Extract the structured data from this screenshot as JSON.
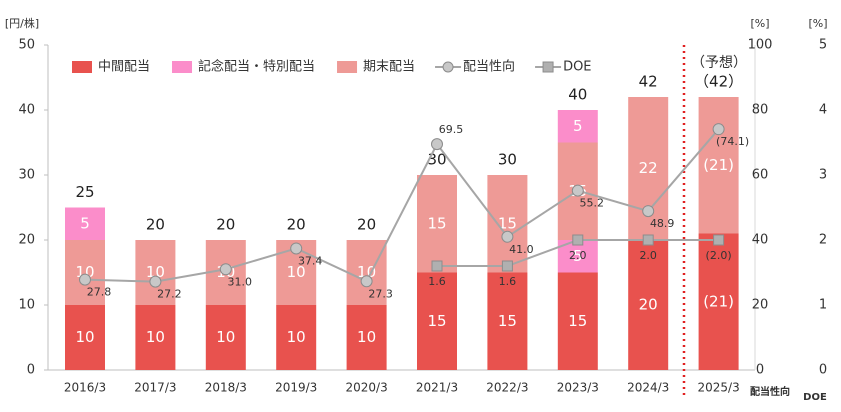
{
  "chart_data": {
    "type": "bar",
    "annotation": "（予想）",
    "y_label": "[円/株]",
    "y2_label": "[%]",
    "y3_label": "[%]",
    "y2_axis_name": "配当性向",
    "y3_axis_name": "DOE",
    "categories": [
      "2016/3",
      "2017/3",
      "2018/3",
      "2019/3",
      "2020/3",
      "2021/3",
      "2022/3",
      "2023/3",
      "2024/3",
      "2025/3"
    ],
    "ylim": [
      0,
      50
    ],
    "yticks": [
      0,
      10,
      20,
      30,
      40,
      50
    ],
    "y2lim": [
      0,
      100
    ],
    "y2ticks": [
      0,
      20,
      40,
      60,
      80,
      100
    ],
    "y3lim": [
      0,
      5
    ],
    "y3ticks": [
      0,
      1,
      2,
      3,
      4,
      5
    ],
    "series": [
      {
        "name": "中間配当",
        "kind": "bar",
        "color": "#e8524e",
        "values": [
          10,
          10,
          10,
          10,
          10,
          15,
          15,
          15,
          20,
          21
        ],
        "value_labels": [
          "10",
          "10",
          "10",
          "10",
          "10",
          "15",
          "15",
          "15",
          "20",
          "(21)"
        ]
      },
      {
        "name": "記念配当・特別配当",
        "kind": "bar",
        "color": "#fb8dca",
        "values": [
          0,
          0,
          0,
          0,
          0,
          0,
          0,
          5,
          0,
          0
        ]
      },
      {
        "name": "期末配当",
        "kind": "bar",
        "color": "#ee9a96",
        "values": [
          10,
          10,
          10,
          10,
          10,
          15,
          15,
          15,
          22,
          21
        ],
        "value_labels": [
          "10",
          "10",
          "10",
          "10",
          "10",
          "15",
          "15",
          "15",
          "22",
          "(21)"
        ]
      },
      {
        "name": "記念配当・特別配当",
        "kind": "bar",
        "color": "#fb8dca",
        "values": [
          5,
          0,
          0,
          0,
          0,
          0,
          0,
          5,
          0,
          0
        ]
      },
      {
        "name": "配当性向",
        "kind": "line",
        "axis": "y2",
        "marker": "circle",
        "color": "#a6a6a6",
        "values": [
          27.8,
          27.2,
          31.0,
          37.4,
          27.3,
          69.5,
          41.0,
          55.2,
          48.9,
          74.1
        ],
        "value_labels": [
          "27.8",
          "27.2",
          "31.0",
          "37.4",
          "27.3",
          "69.5",
          "41.0",
          "55.2",
          "48.9",
          "(74.1)"
        ]
      },
      {
        "name": "DOE",
        "kind": "line",
        "axis": "y3",
        "marker": "square",
        "color": "#a6a6a6",
        "values": [
          null,
          null,
          null,
          null,
          null,
          1.6,
          1.6,
          2.0,
          2.0,
          2.0
        ],
        "value_labels": [
          null,
          null,
          null,
          null,
          null,
          "1.6",
          "1.6",
          "2.0",
          "2.0",
          "(2.0)"
        ]
      }
    ],
    "totals": {
      "values": [
        25,
        20,
        20,
        20,
        20,
        30,
        30,
        40,
        42,
        42
      ],
      "value_labels": [
        "25",
        "20",
        "20",
        "20",
        "20",
        "30",
        "30",
        "40",
        "42",
        "（42）"
      ]
    }
  }
}
